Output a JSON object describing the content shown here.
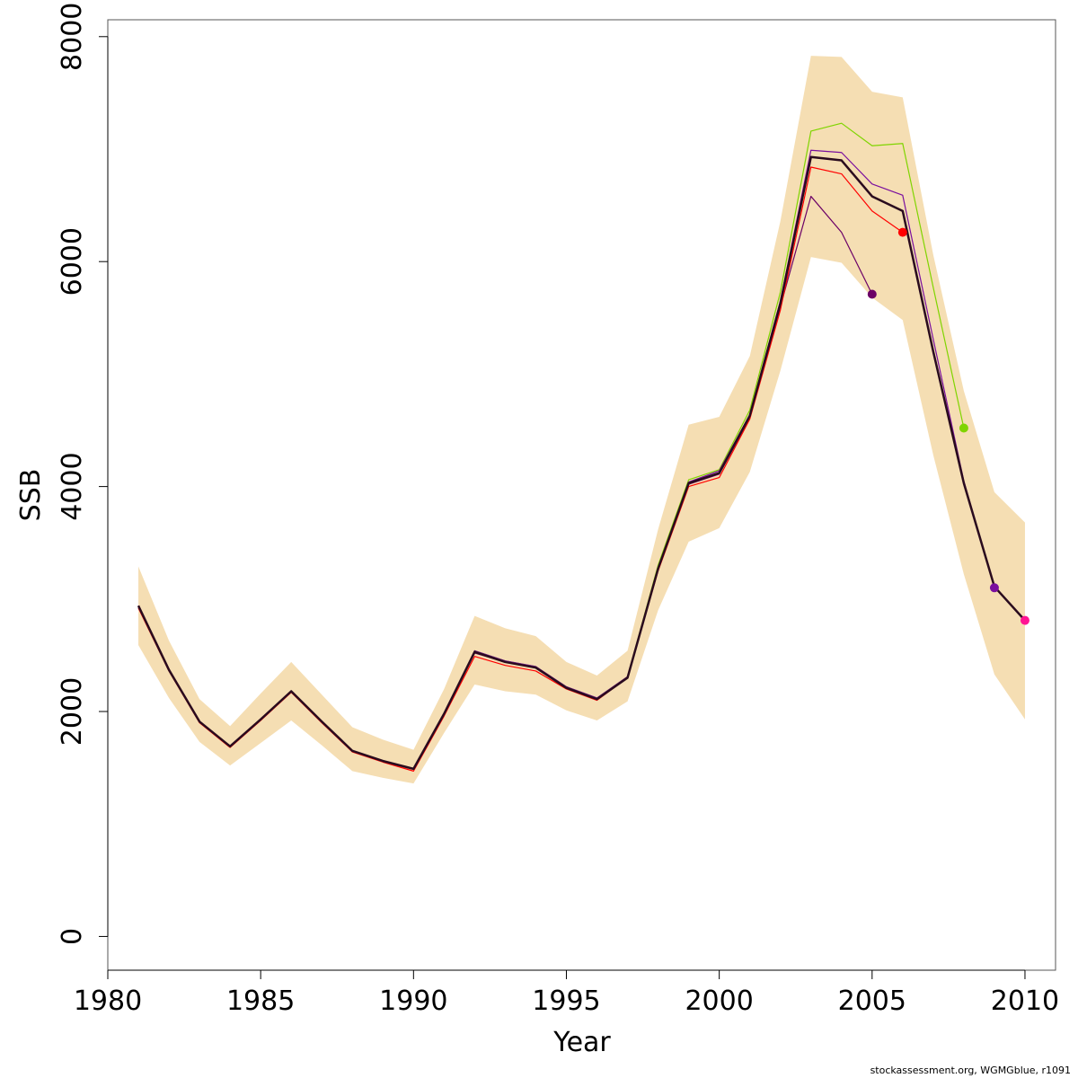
{
  "chart_data": {
    "type": "line",
    "title": "",
    "xlabel": "Year",
    "ylabel": "SSB",
    "xlim": [
      1980,
      2011
    ],
    "ylim": [
      -300,
      8150
    ],
    "x_ticks": [
      1980,
      1985,
      1990,
      1995,
      2000,
      2005,
      2010
    ],
    "y_ticks": [
      0,
      2000,
      4000,
      6000,
      8000
    ],
    "grid": false,
    "legend": "none",
    "band": {
      "color": "#f5deb3",
      "x": [
        1981,
        1982,
        1983,
        1984,
        1985,
        1986,
        1987,
        1988,
        1989,
        1990,
        1991,
        1992,
        1993,
        1994,
        1995,
        1996,
        1997,
        1998,
        1999,
        2000,
        2001,
        2002,
        2003,
        2004,
        2005,
        2006,
        2007,
        2008,
        2009,
        2010
      ],
      "upper": [
        3290,
        2630,
        2110,
        1870,
        2160,
        2440,
        2150,
        1860,
        1750,
        1660,
        2200,
        2850,
        2740,
        2670,
        2440,
        2320,
        2540,
        3620,
        4550,
        4620,
        5160,
        6360,
        7830,
        7820,
        7510,
        7460,
        6060,
        4850,
        3950,
        3680
      ],
      "lower": [
        2590,
        2120,
        1730,
        1520,
        1720,
        1920,
        1700,
        1470,
        1410,
        1360,
        1810,
        2240,
        2180,
        2150,
        2010,
        1920,
        2090,
        2900,
        3510,
        3630,
        4130,
        5030,
        6040,
        5990,
        5680,
        5480,
        4280,
        3220,
        2330,
        1930
      ]
    },
    "series": [
      {
        "color": "#6b0066",
        "values": [
          2940,
          2370,
          1910,
          1690,
          1930,
          2180,
          1910,
          1650,
          1560,
          1490,
          1980,
          2520,
          2440,
          2390,
          2210,
          2110,
          2300,
          3260,
          4020,
          4110,
          4610,
          5600,
          6580,
          6260,
          5710
        ]
      },
      {
        "color": "#7fd400",
        "values": [
          2940,
          2370,
          1910,
          1690,
          1930,
          2180,
          1910,
          1650,
          1560,
          1490,
          1980,
          2540,
          2450,
          2400,
          2220,
          2120,
          2310,
          3300,
          4060,
          4150,
          4680,
          5730,
          7160,
          7230,
          7030,
          7050,
          5770,
          4520
        ]
      },
      {
        "color": "#ff0000",
        "values": [
          2920,
          2360,
          1900,
          1680,
          1920,
          2170,
          1900,
          1640,
          1550,
          1470,
          1960,
          2490,
          2410,
          2360,
          2200,
          2100,
          2300,
          3250,
          4000,
          4080,
          4600,
          5570,
          6840,
          6780,
          6450,
          6260
        ]
      },
      {
        "color": "#7a0f9e",
        "values": [
          2940,
          2370,
          1910,
          1690,
          1930,
          2180,
          1910,
          1650,
          1560,
          1490,
          1980,
          2540,
          2450,
          2400,
          2220,
          2120,
          2310,
          3280,
          4040,
          4140,
          4640,
          5650,
          6990,
          6970,
          6690,
          6590,
          5310,
          4050,
          3100
        ]
      },
      {
        "color": "#ff1493",
        "values": [
          2940,
          2370,
          1910,
          1690,
          1930,
          2180,
          1910,
          1650,
          1560,
          1490,
          1980,
          2530,
          2440,
          2390,
          2210,
          2110,
          2300,
          3270,
          4030,
          4120,
          4630,
          5630,
          6930,
          6900,
          6580,
          6450,
          5200,
          4030,
          3110,
          2810
        ]
      },
      {
        "color": "#2a0b1e",
        "width": 2.5,
        "values": [
          2940,
          2370,
          1910,
          1690,
          1930,
          2180,
          1910,
          1650,
          1560,
          1490,
          1980,
          2530,
          2440,
          2390,
          2210,
          2110,
          2300,
          3270,
          4030,
          4120,
          4630,
          5630,
          6930,
          6900,
          6580,
          6450,
          5200,
          4030,
          3110,
          2810
        ]
      }
    ]
  },
  "footer": "stockassessment.org, WGMGblue, r1091"
}
